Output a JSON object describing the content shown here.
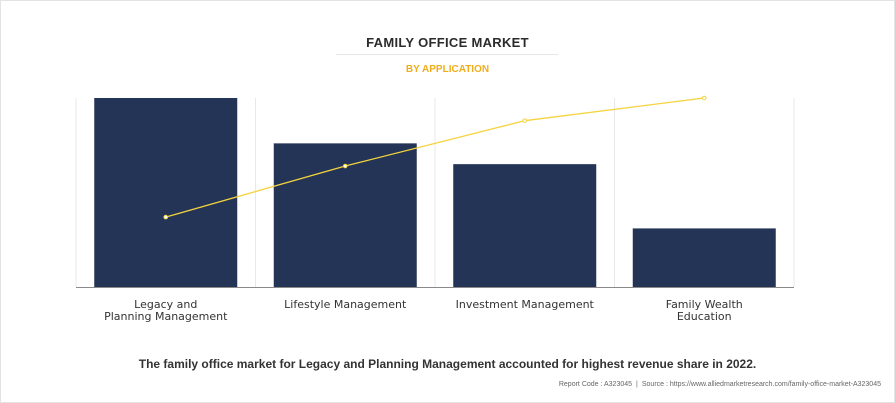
{
  "header": {
    "title": "FAMILY OFFICE MARKET",
    "subtitle": "BY APPLICATION"
  },
  "chart_data": {
    "type": "bar",
    "categories": [
      [
        "Legacy and",
        "Planning Management"
      ],
      [
        "Lifestyle Management"
      ],
      [
        "Investment Management"
      ],
      [
        "Family Wealth",
        "Education"
      ]
    ],
    "series": [
      {
        "type": "bar",
        "values": [
          100,
          76,
          65,
          31
        ],
        "color": "#233457"
      },
      {
        "type": "line",
        "values": [
          37,
          64,
          88,
          100
        ],
        "color": "#f5d33c"
      }
    ],
    "ylim": [
      0,
      100
    ],
    "grid": "vertical",
    "legend": "none"
  },
  "caption": "The family office market for Legacy and Planning Management accounted for highest revenue share in 2022.",
  "footer": {
    "report_code": "Report Code : A323045",
    "source": "Source : https://www.alliedmarketresearch.com/family-office-market-A323045"
  }
}
